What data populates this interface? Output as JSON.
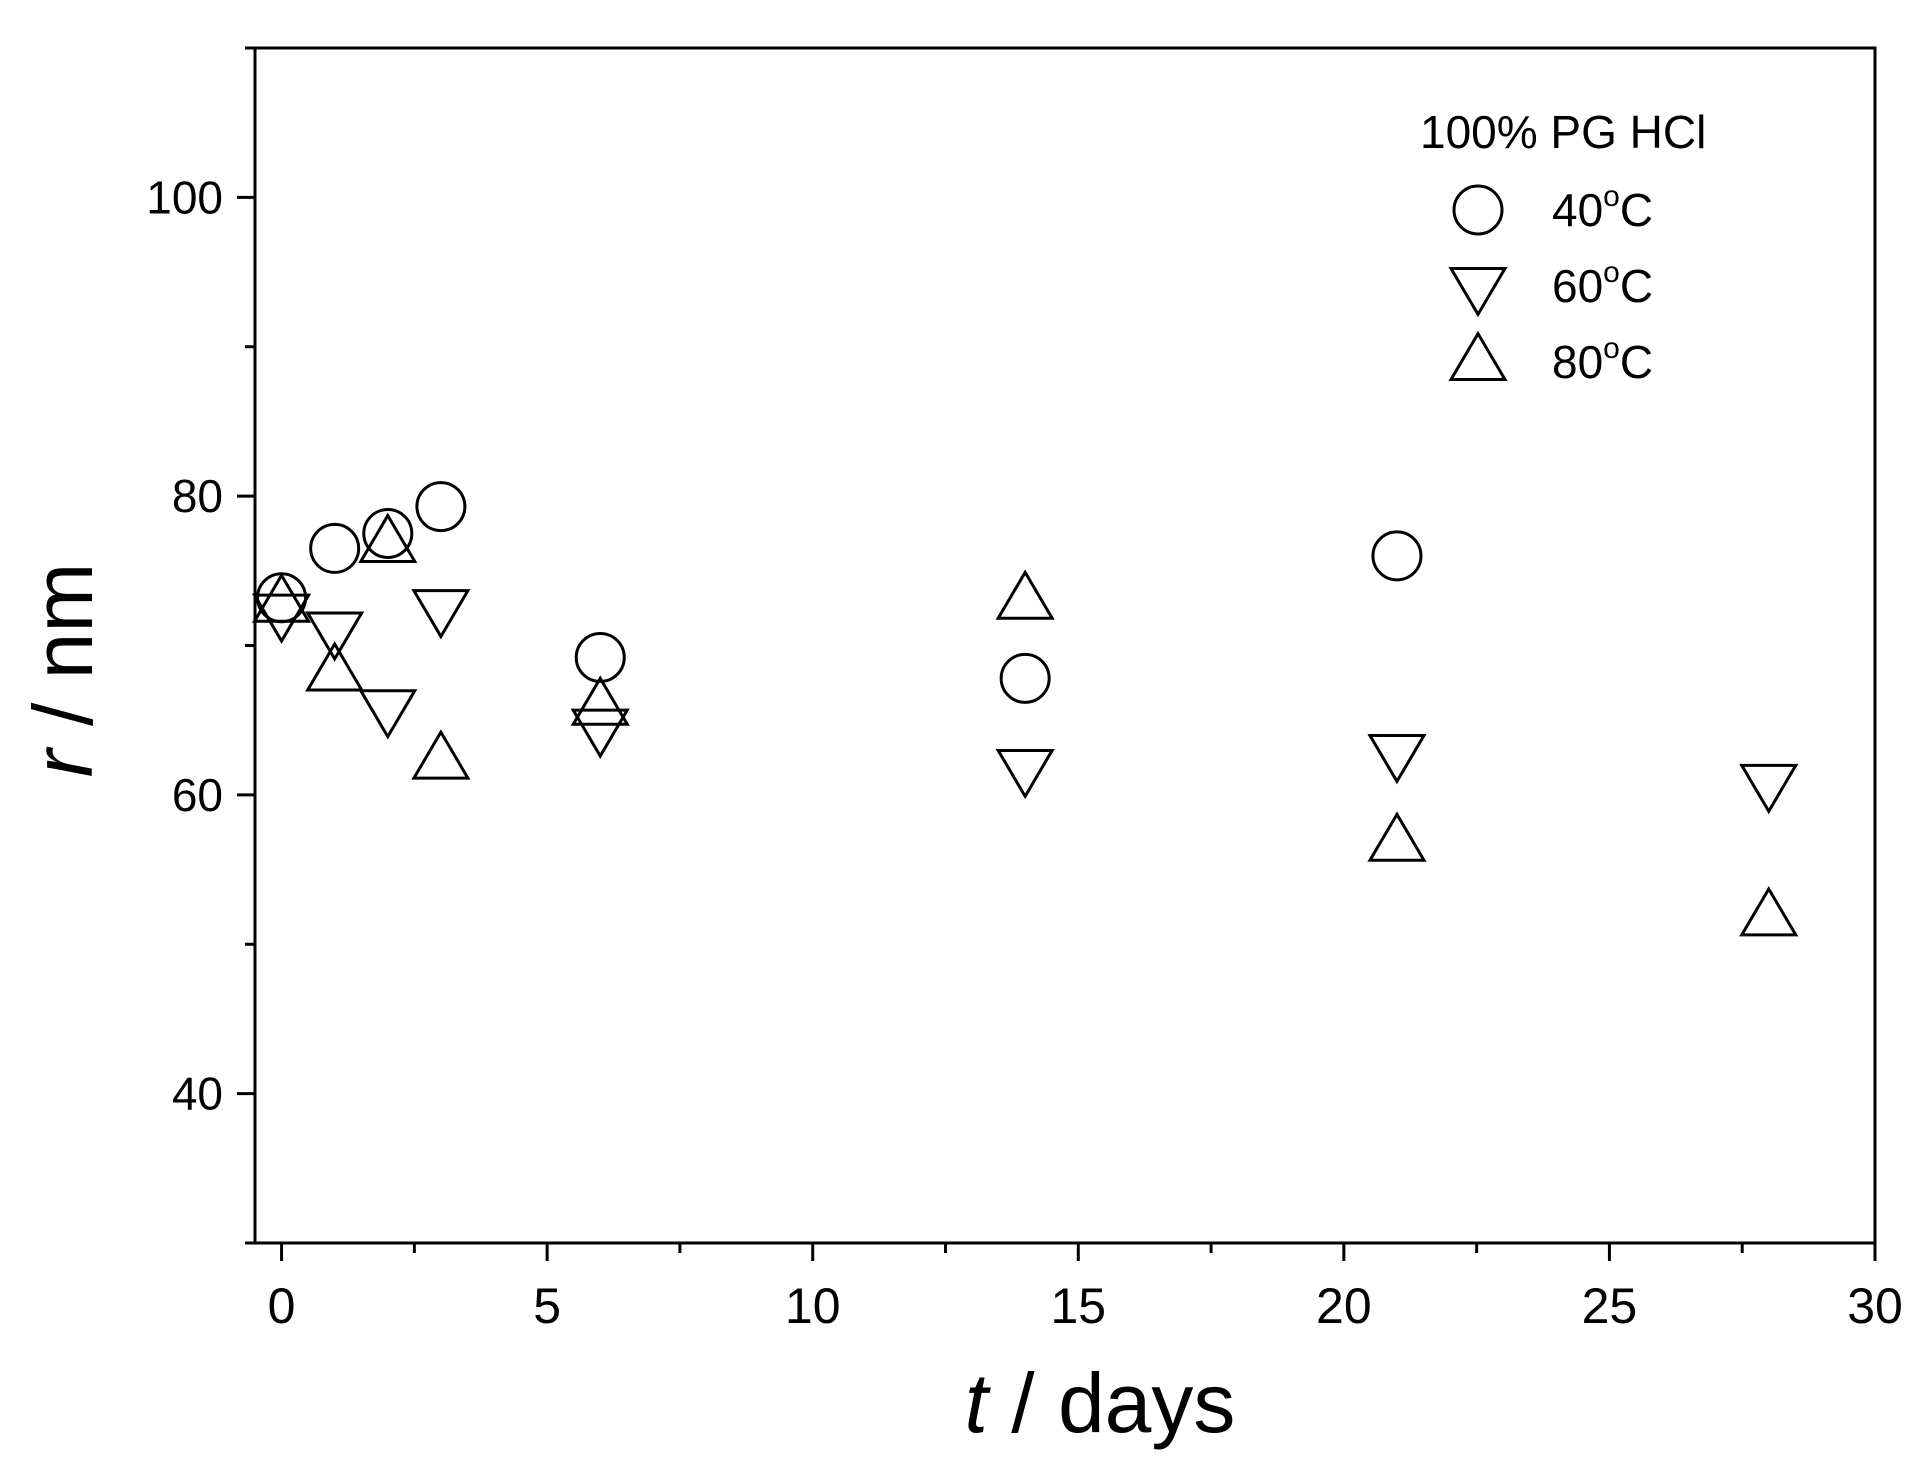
{
  "chart_data": {
    "type": "scatter",
    "xlabel": {
      "var": "t",
      "unit": " / days"
    },
    "ylabel": {
      "var": "r",
      "unit": " / nm"
    },
    "xlim": [
      -0.5,
      30
    ],
    "ylim": [
      30,
      110
    ],
    "x_ticks": [
      0,
      5,
      10,
      15,
      20,
      25,
      30
    ],
    "x_tick_labels": [
      "0",
      "5",
      "10",
      "15",
      "20",
      "25",
      "30"
    ],
    "y_ticks": [
      40,
      60,
      80,
      100
    ],
    "y_tick_labels": [
      "40",
      "60",
      "80",
      "100"
    ],
    "grid": false,
    "legend": {
      "title": "100% PG HCl",
      "position": "top-right",
      "entries": [
        {
          "label": "40",
          "superscript": "o",
          "suffix": "C",
          "marker": "circle"
        },
        {
          "label": "60",
          "superscript": "o",
          "suffix": "C",
          "marker": "triangle-down"
        },
        {
          "label": "80",
          "superscript": "o",
          "suffix": "C",
          "marker": "triangle-up"
        }
      ]
    },
    "series": [
      {
        "name": "40°C",
        "marker": "circle",
        "x": [
          0,
          1,
          2,
          3,
          6,
          14,
          21
        ],
        "y": [
          73.2,
          76.5,
          77.5,
          79.3,
          69.2,
          67.8,
          76.0
        ]
      },
      {
        "name": "60°C",
        "marker": "triangle-down",
        "x": [
          0,
          1,
          2,
          3,
          6,
          14,
          21,
          28
        ],
        "y": [
          72.2,
          71.0,
          65.8,
          72.5,
          64.5,
          61.8,
          62.8,
          60.8
        ]
      },
      {
        "name": "80°C",
        "marker": "triangle-up",
        "x": [
          0,
          1,
          2,
          3,
          6,
          14,
          21,
          28
        ],
        "y": [
          72.8,
          68.2,
          76.8,
          62.3,
          65.9,
          73.0,
          56.8,
          51.8
        ]
      }
    ]
  }
}
